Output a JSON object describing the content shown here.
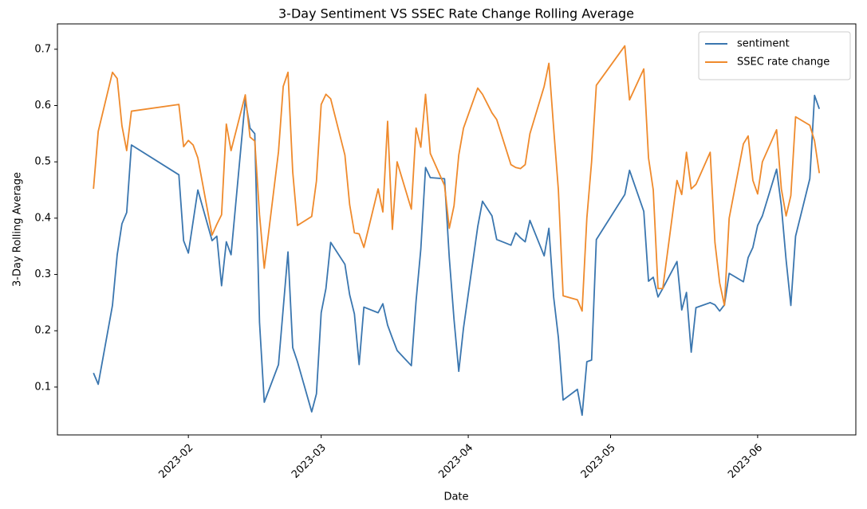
{
  "chart_data": {
    "type": "line",
    "title": "3-Day Sentiment VS SSEC Rate Change Rolling Average",
    "x_label": "Date",
    "y_label": "3-Day Rolling Average",
    "x": [
      19369,
      19370,
      19373,
      19374,
      19375,
      19376,
      19377,
      19387,
      19388,
      19389,
      19390,
      19391,
      19394,
      19395,
      19396,
      19397,
      19398,
      19401,
      19402,
      19403,
      19404,
      19405,
      19408,
      19409,
      19410,
      19411,
      19412,
      19415,
      19416,
      19417,
      19418,
      19419,
      19422,
      19423,
      19424,
      19425,
      19426,
      19429,
      19430,
      19431,
      19432,
      19433,
      19436,
      19437,
      19438,
      19439,
      19440,
      19443,
      19444,
      19445,
      19446,
      19447,
      19450,
      19451,
      19453,
      19454,
      19457,
      19458,
      19459,
      19460,
      19461,
      19464,
      19465,
      19466,
      19467,
      19468,
      19471,
      19472,
      19473,
      19474,
      19475,
      19481,
      19482,
      19485,
      19486,
      19487,
      19488,
      19489,
      19492,
      19493,
      19494,
      19495,
      19496,
      19499,
      19500,
      19501,
      19502,
      19503,
      19506,
      19507,
      19508,
      19509,
      19510,
      19513,
      19514,
      19515,
      19516,
      19517,
      19520,
      19521,
      19522
    ],
    "series": [
      {
        "name": "sentiment",
        "color": "#3a76af",
        "values": [
          0.125,
          0.105,
          0.245,
          0.335,
          0.39,
          0.41,
          0.53,
          0.477,
          0.36,
          0.338,
          0.394,
          0.45,
          0.36,
          0.368,
          0.28,
          0.358,
          0.335,
          0.61,
          0.56,
          0.55,
          0.215,
          0.073,
          0.14,
          0.24,
          0.34,
          0.17,
          0.145,
          0.056,
          0.088,
          0.232,
          0.275,
          0.357,
          0.318,
          0.264,
          0.23,
          0.14,
          0.242,
          0.232,
          0.248,
          0.21,
          0.187,
          0.165,
          0.138,
          0.253,
          0.345,
          0.49,
          0.472,
          0.47,
          0.33,
          0.22,
          0.128,
          0.205,
          0.385,
          0.43,
          0.404,
          0.362,
          0.352,
          0.374,
          0.365,
          0.358,
          0.396,
          0.333,
          0.382,
          0.26,
          0.188,
          0.077,
          0.096,
          0.05,
          0.145,
          0.148,
          0.362,
          0.442,
          0.485,
          0.412,
          0.288,
          0.295,
          0.26,
          0.275,
          0.323,
          0.237,
          0.268,
          0.162,
          0.241,
          0.25,
          0.246,
          0.235,
          0.246,
          0.302,
          0.287,
          0.33,
          0.348,
          0.387,
          0.404,
          0.487,
          0.422,
          0.326,
          0.245,
          0.368,
          0.47,
          0.618,
          0.594
        ]
      },
      {
        "name": "SSEC rate change",
        "color": "#ef8a2c",
        "values": [
          0.452,
          0.554,
          0.659,
          0.648,
          0.564,
          0.52,
          0.59,
          0.602,
          0.527,
          0.538,
          0.53,
          0.507,
          0.37,
          0.389,
          0.406,
          0.567,
          0.52,
          0.619,
          0.544,
          0.537,
          0.406,
          0.311,
          0.518,
          0.634,
          0.659,
          0.482,
          0.387,
          0.403,
          0.466,
          0.602,
          0.62,
          0.612,
          0.512,
          0.424,
          0.374,
          0.372,
          0.348,
          0.452,
          0.411,
          0.572,
          0.38,
          0.5,
          0.416,
          0.56,
          0.526,
          0.62,
          0.515,
          0.458,
          0.382,
          0.422,
          0.512,
          0.56,
          0.631,
          0.62,
          0.587,
          0.575,
          0.495,
          0.49,
          0.488,
          0.495,
          0.55,
          0.634,
          0.675,
          0.56,
          0.45,
          0.262,
          0.255,
          0.235,
          0.4,
          0.5,
          0.636,
          0.706,
          0.61,
          0.665,
          0.507,
          0.45,
          0.275,
          0.275,
          0.467,
          0.442,
          0.517,
          0.452,
          0.46,
          0.517,
          0.357,
          0.285,
          0.245,
          0.4,
          0.532,
          0.546,
          0.467,
          0.443,
          0.5,
          0.557,
          0.452,
          0.404,
          0.44,
          0.58,
          0.565,
          0.537,
          0.48
        ]
      }
    ],
    "xlim": [
      19361.4,
      19529.7
    ],
    "xticks": [
      {
        "value": 19389,
        "label": "2023-02"
      },
      {
        "value": 19417,
        "label": "2023-03"
      },
      {
        "value": 19448,
        "label": "2023-04"
      },
      {
        "value": 19478,
        "label": "2023-05"
      },
      {
        "value": 19509,
        "label": "2023-06"
      }
    ],
    "ylim": [
      0.015,
      0.745
    ],
    "yticks": [
      0.1,
      0.2,
      0.3,
      0.4,
      0.5,
      0.6,
      0.7
    ],
    "grid": false,
    "legend": "upper right"
  }
}
